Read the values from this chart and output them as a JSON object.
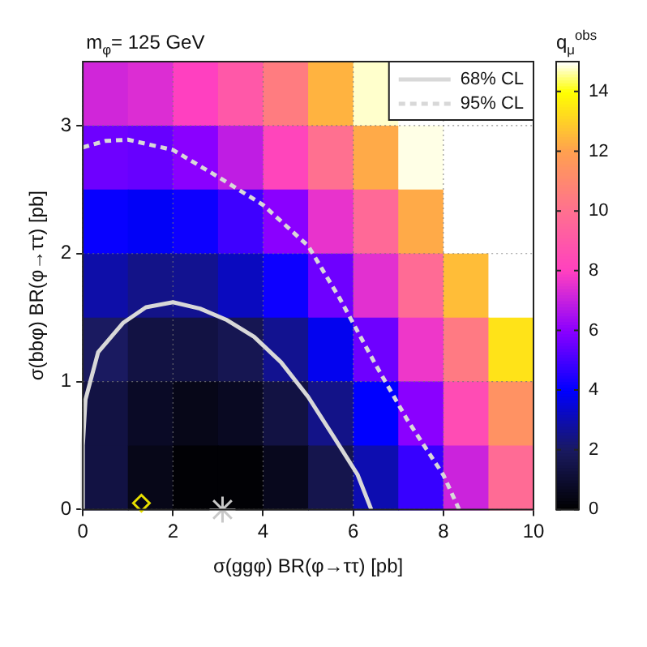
{
  "chart_data": {
    "type": "heatmap",
    "title": "m$_{φ}$= 125 GeV",
    "xlabel": "σ(ggφ) BR(φ→ττ) [pb]",
    "ylabel": "σ(bbφ) BR(φ→ττ) [pb]",
    "clabel": "q$_{μ}$$^{obs}$",
    "xlim": [
      0,
      10
    ],
    "xticks": [
      0,
      2,
      4,
      6,
      8,
      10
    ],
    "ylim": [
      0,
      3.5
    ],
    "yticks": [
      0,
      1,
      2,
      3
    ],
    "clim": [
      0,
      15
    ],
    "cticks": [
      0,
      2,
      4,
      6,
      8,
      10,
      12,
      14
    ],
    "grid": true,
    "legend": "top right",
    "cells": [
      [
        7.2,
        7.4,
        8.0,
        9.0,
        10.5,
        12.4,
        14.8,
        15,
        15,
        15
      ],
      [
        5.6,
        5.5,
        6.0,
        6.9,
        8.2,
        10.0,
        12.2,
        14.9,
        15,
        15
      ],
      [
        4.1,
        3.9,
        4.2,
        4.9,
        6.0,
        7.6,
        9.7,
        12.2,
        15,
        15
      ],
      [
        2.9,
        2.5,
        2.6,
        3.2,
        4.2,
        5.6,
        7.5,
        9.8,
        12.6,
        15
      ],
      [
        2.0,
        1.4,
        1.4,
        1.7,
        2.6,
        3.8,
        5.6,
        7.7,
        10.4,
        13.4
      ],
      [
        1.4,
        0.8,
        0.5,
        0.7,
        1.4,
        2.5,
        4.0,
        6.0,
        8.5,
        11.4
      ],
      [
        1.4,
        0.5,
        0.1,
        0.1,
        0.6,
        1.6,
        3.0,
        4.8,
        7.1,
        9.8
      ]
    ],
    "series": [
      {
        "name": "68% CL",
        "type": "line",
        "color": "#d8d8d8",
        "line_style": "solid",
        "x": [
          0,
          0,
          0.06,
          0.34,
          0.9,
          1.4,
          2.0,
          2.6,
          3.2,
          3.8,
          4.4,
          5.0,
          5.6,
          6.1,
          6.4
        ],
        "values": [
          0,
          0.5,
          0.86,
          1.23,
          1.46,
          1.58,
          1.62,
          1.57,
          1.48,
          1.35,
          1.15,
          0.88,
          0.55,
          0.27,
          0
        ]
      },
      {
        "name": "95% CL",
        "type": "line",
        "color": "#d8d8d8",
        "line_style": "dashed",
        "x": [
          0,
          0.5,
          1.0,
          2.0,
          3.0,
          4.0,
          5.0,
          5.7,
          6.5,
          7.2,
          8.0,
          8.35
        ],
        "values": [
          2.83,
          2.88,
          2.89,
          2.81,
          2.6,
          2.38,
          2.06,
          1.65,
          1.13,
          0.7,
          0.27,
          0
        ]
      },
      {
        "type": "scatter",
        "color": "#e8e000",
        "marker": "diamond",
        "x": [
          1.3
        ],
        "values": [
          0.05
        ]
      },
      {
        "type": "scatter",
        "color": "#c8c8c8",
        "marker": "cross",
        "x": [
          3.1
        ],
        "values": [
          0
        ]
      }
    ]
  }
}
